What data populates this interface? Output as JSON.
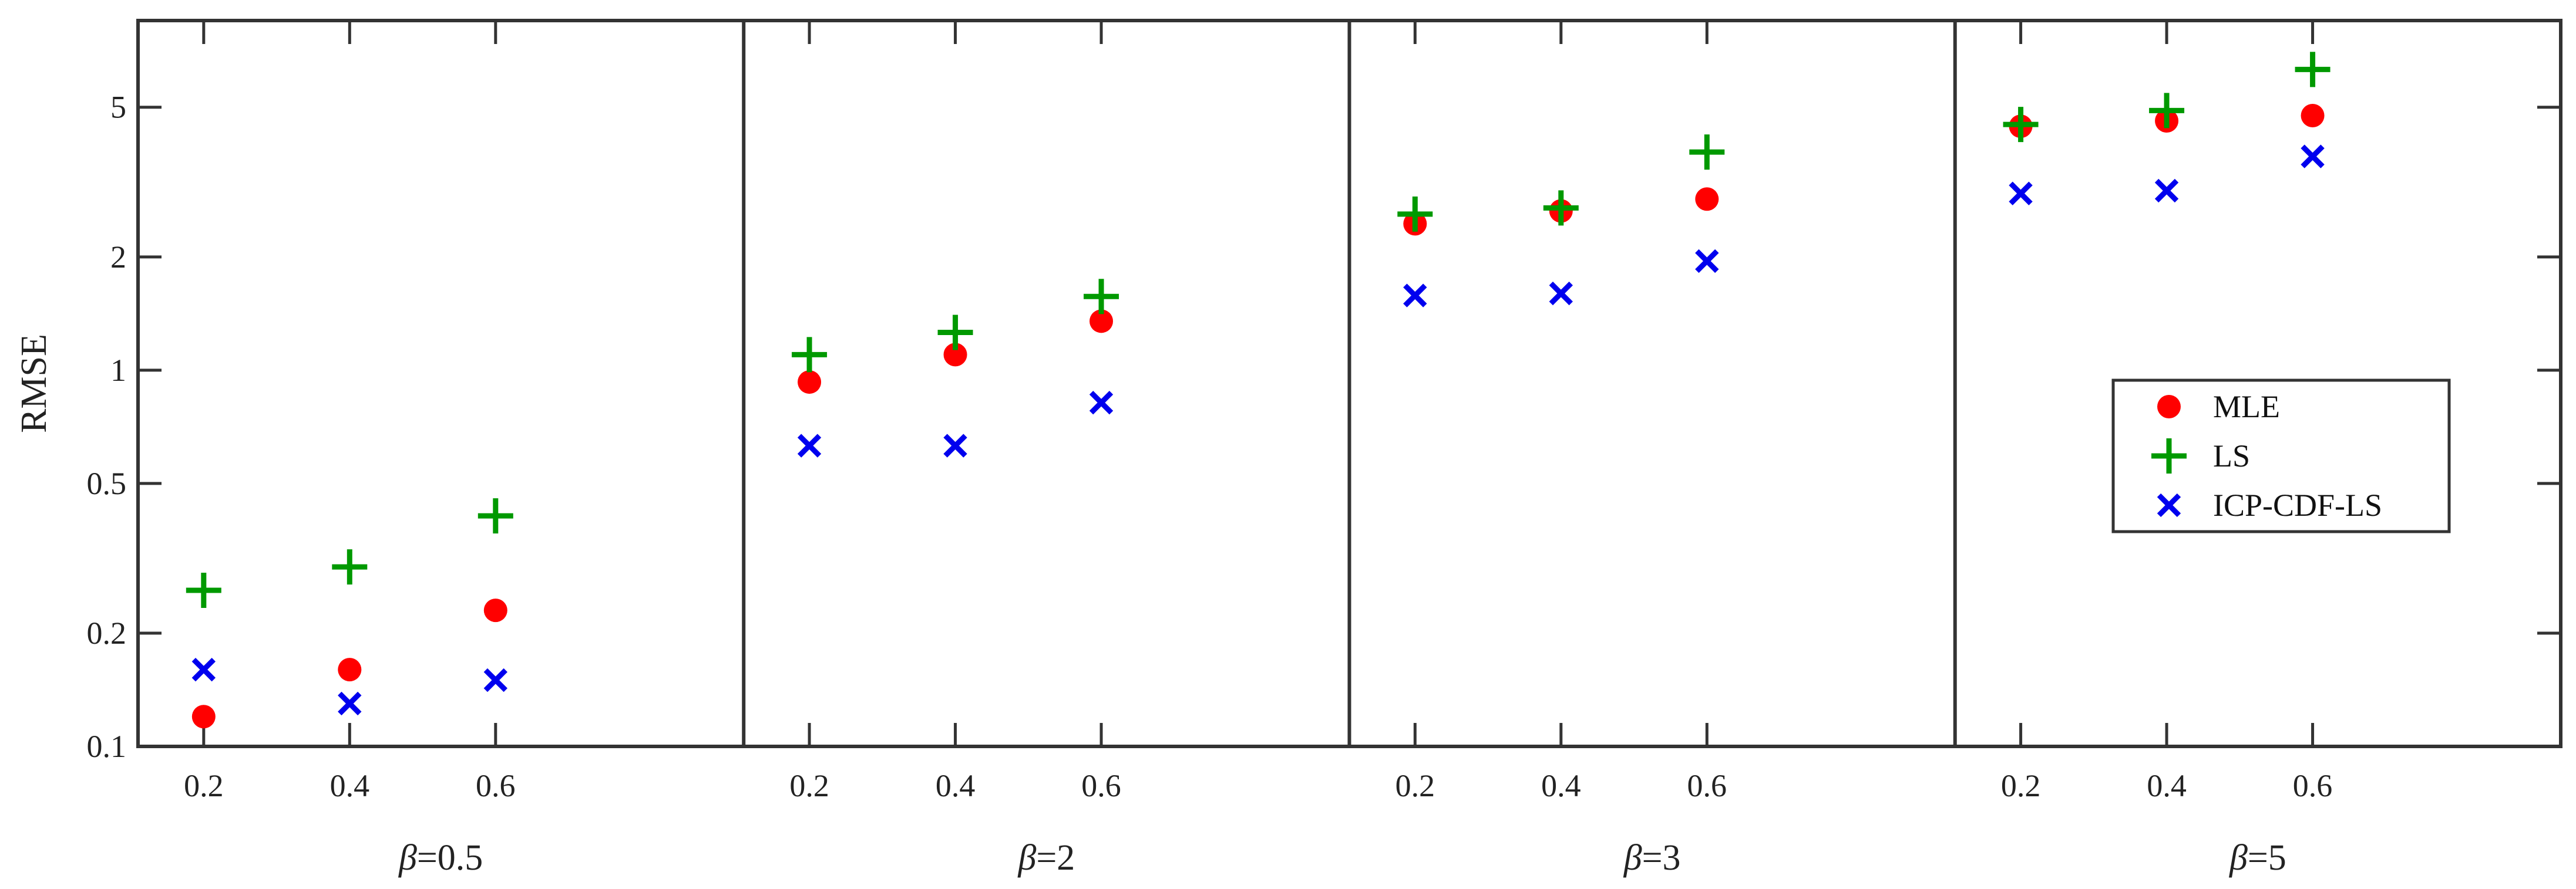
{
  "chart_data": {
    "type": "scatter",
    "ylabel": "RMSE",
    "yscale": "log",
    "ylim": [
      0.1,
      8.5
    ],
    "yticks": [
      0.1,
      0.2,
      0.5,
      1,
      2,
      5
    ],
    "ytick_labels": [
      "0.1",
      "0.2",
      "0.5",
      "1",
      "2",
      "5"
    ],
    "xticks": [
      0.2,
      0.4,
      0.6
    ],
    "xtick_labels": [
      "0.2",
      "0.4",
      "0.6"
    ],
    "grid": false,
    "legend_position": "right",
    "colors": {
      "MLE": "#ff0000",
      "LS": "#009900",
      "ICP-CDF-LS": "#0000ee"
    },
    "markers": {
      "MLE": "filled-circle",
      "LS": "plus",
      "ICP-CDF-LS": "x"
    },
    "panels": [
      {
        "label_symbol": "β",
        "label_value": "=0.5",
        "series": [
          {
            "name": "MLE",
            "x": [
              0.2,
              0.4,
              0.6
            ],
            "y": [
              0.12,
              0.16,
              0.23
            ]
          },
          {
            "name": "LS",
            "x": [
              0.2,
              0.4,
              0.6
            ],
            "y": [
              0.26,
              0.3,
              0.41
            ]
          },
          {
            "name": "ICP-CDF-LS",
            "x": [
              0.2,
              0.4,
              0.6
            ],
            "y": [
              0.16,
              0.13,
              0.15
            ]
          }
        ]
      },
      {
        "label_symbol": "β",
        "label_value": "=2",
        "series": [
          {
            "name": "MLE",
            "x": [
              0.2,
              0.4,
              0.6
            ],
            "y": [
              0.93,
              1.1,
              1.35
            ]
          },
          {
            "name": "LS",
            "x": [
              0.2,
              0.4,
              0.6
            ],
            "y": [
              1.1,
              1.26,
              1.57
            ]
          },
          {
            "name": "ICP-CDF-LS",
            "x": [
              0.2,
              0.4,
              0.6
            ],
            "y": [
              0.63,
              0.63,
              0.82
            ]
          }
        ]
      },
      {
        "label_symbol": "β",
        "label_value": "=3",
        "series": [
          {
            "name": "MLE",
            "x": [
              0.2,
              0.4,
              0.6
            ],
            "y": [
              2.45,
              2.65,
              2.85
            ]
          },
          {
            "name": "LS",
            "x": [
              0.2,
              0.4,
              0.6
            ],
            "y": [
              2.6,
              2.7,
              3.8
            ]
          },
          {
            "name": "ICP-CDF-LS",
            "x": [
              0.2,
              0.4,
              0.6
            ],
            "y": [
              1.58,
              1.6,
              1.95
            ]
          }
        ]
      },
      {
        "label_symbol": "β",
        "label_value": "=5",
        "series": [
          {
            "name": "MLE",
            "x": [
              0.2,
              0.4,
              0.6
            ],
            "y": [
              4.45,
              4.6,
              4.75
            ]
          },
          {
            "name": "LS",
            "x": [
              0.2,
              0.4,
              0.6
            ],
            "y": [
              4.5,
              4.9,
              6.3
            ]
          },
          {
            "name": "ICP-CDF-LS",
            "x": [
              0.2,
              0.4,
              0.6
            ],
            "y": [
              2.95,
              3.0,
              3.7
            ]
          }
        ]
      }
    ],
    "legend": [
      "MLE",
      "LS",
      "ICP-CDF-LS"
    ]
  }
}
